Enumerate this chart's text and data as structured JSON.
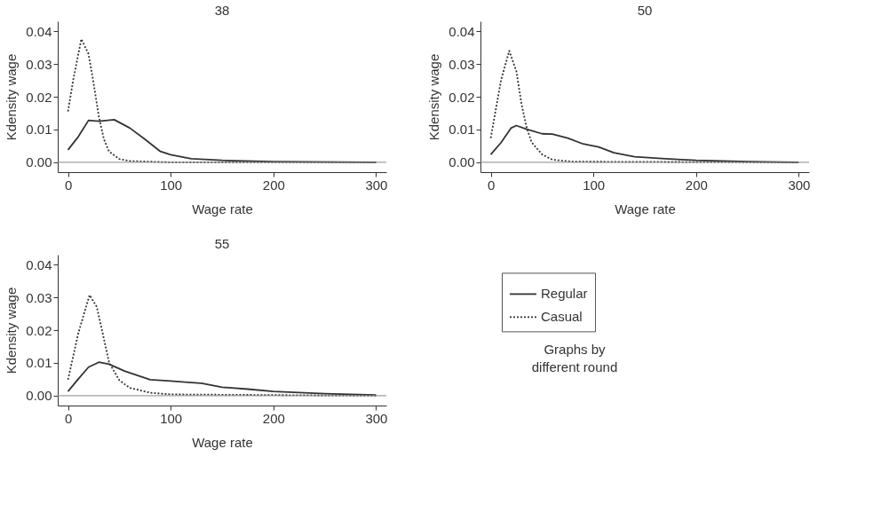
{
  "chart_data": [
    {
      "type": "line",
      "title": "38",
      "xlabel": "Wage rate",
      "ylabel": "Kdensity wage",
      "xlim": [
        -10,
        310
      ],
      "ylim": [
        -0.003,
        0.043
      ],
      "xticks": [
        0,
        100,
        200,
        300
      ],
      "yticks": [
        {
          "value": 0,
          "label": "0.00"
        },
        {
          "value": 0.01,
          "label": "0.01"
        },
        {
          "value": 0.02,
          "label": "0.02"
        },
        {
          "value": 0.03,
          "label": "0.03"
        },
        {
          "value": 0.04,
          "label": "0.04"
        }
      ],
      "ref_lines": [
        {
          "axis": "y",
          "value": 0,
          "color": "#888888"
        }
      ],
      "grid": false,
      "series": [
        {
          "color": "#333333",
          "line_style": "solid",
          "x": [
            0,
            10,
            20,
            30,
            45,
            60,
            75,
            90,
            100,
            120,
            150,
            200,
            300
          ],
          "values": [
            0.0038,
            0.0078,
            0.0128,
            0.0125,
            0.013,
            0.0105,
            0.007,
            0.0033,
            0.0023,
            0.0011,
            0.0006,
            0.0002,
            0
          ]
        },
        {
          "color": "#333333",
          "line_style": "dotted",
          "x": [
            0,
            5,
            13,
            20,
            25,
            30,
            35,
            40,
            50,
            60,
            100,
            300
          ],
          "values": [
            0.0155,
            0.025,
            0.0376,
            0.033,
            0.024,
            0.014,
            0.007,
            0.0033,
            0.001,
            0.0004,
            0,
            0
          ]
        }
      ]
    },
    {
      "type": "line",
      "title": "50",
      "xlabel": "Wage rate",
      "ylabel": "Kdensity wage",
      "xlim": [
        -10,
        310
      ],
      "ylim": [
        -0.003,
        0.043
      ],
      "xticks": [
        0,
        100,
        200,
        300
      ],
      "yticks": [
        {
          "value": 0,
          "label": "0.00"
        },
        {
          "value": 0.01,
          "label": "0.01"
        },
        {
          "value": 0.02,
          "label": "0.02"
        },
        {
          "value": 0.03,
          "label": "0.03"
        },
        {
          "value": 0.04,
          "label": "0.04"
        }
      ],
      "ref_lines": [
        {
          "axis": "y",
          "value": 0,
          "color": "#888888"
        }
      ],
      "grid": false,
      "series": [
        {
          "color": "#333333",
          "line_style": "solid",
          "x": [
            0,
            10,
            20,
            25,
            35,
            50,
            60,
            75,
            90,
            105,
            120,
            140,
            170,
            200,
            250,
            300
          ],
          "values": [
            0.0024,
            0.006,
            0.0105,
            0.0112,
            0.0101,
            0.0087,
            0.0086,
            0.0074,
            0.0056,
            0.0047,
            0.0029,
            0.0017,
            0.0011,
            0.0006,
            0.0002,
            0
          ]
        },
        {
          "color": "#333333",
          "line_style": "dotted",
          "x": [
            0,
            10,
            18,
            25,
            30,
            35,
            40,
            50,
            60,
            80,
            300
          ],
          "values": [
            0.0074,
            0.025,
            0.034,
            0.0277,
            0.0177,
            0.0105,
            0.006,
            0.0024,
            0.0008,
            0.0002,
            0
          ]
        }
      ]
    },
    {
      "type": "line",
      "title": "55",
      "xlabel": "Wage rate",
      "ylabel": "Kdensity wage",
      "xlim": [
        -10,
        310
      ],
      "ylim": [
        -0.003,
        0.043
      ],
      "xticks": [
        0,
        100,
        200,
        300
      ],
      "yticks": [
        {
          "value": 0,
          "label": "0.00"
        },
        {
          "value": 0.01,
          "label": "0.01"
        },
        {
          "value": 0.02,
          "label": "0.02"
        },
        {
          "value": 0.03,
          "label": "0.03"
        },
        {
          "value": 0.04,
          "label": "0.04"
        }
      ],
      "ref_lines": [
        {
          "axis": "y",
          "value": 0,
          "color": "#888888"
        }
      ],
      "grid": false,
      "legend": "right",
      "annotations": [
        "Graphs by different round"
      ],
      "series": [
        {
          "name": "Regular",
          "color": "#333333",
          "line_style": "solid",
          "x": [
            0,
            10,
            20,
            30,
            40,
            55,
            80,
            100,
            120,
            130,
            150,
            175,
            200,
            250,
            300
          ],
          "values": [
            0.0013,
            0.0051,
            0.0087,
            0.0102,
            0.0096,
            0.0075,
            0.0049,
            0.0045,
            0.004,
            0.0038,
            0.0026,
            0.002,
            0.0013,
            0.0006,
            0.0002
          ]
        },
        {
          "name": "Casual",
          "color": "#333333",
          "line_style": "dotted",
          "x": [
            0,
            10,
            21,
            28,
            35,
            40,
            50,
            60,
            80,
            100,
            300
          ],
          "values": [
            0.0049,
            0.019,
            0.0307,
            0.0271,
            0.0173,
            0.0101,
            0.0047,
            0.0024,
            0.0009,
            0.0004,
            0
          ]
        }
      ]
    }
  ]
}
